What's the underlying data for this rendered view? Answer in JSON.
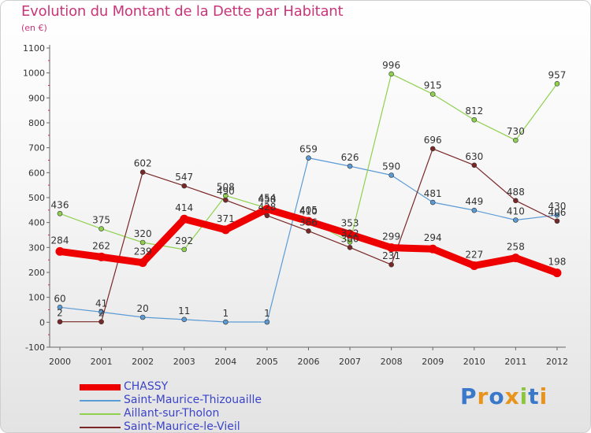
{
  "chart_data": {
    "type": "line",
    "title": "Evolution du Montant de la Dette par Habitant",
    "unit_label": "(en €)",
    "x": [
      "2000",
      "2001",
      "2002",
      "2003",
      "2004",
      "2005",
      "2006",
      "2007",
      "2008",
      "2009",
      "2010",
      "2011",
      "2012"
    ],
    "yticks": [
      -100,
      0,
      100,
      200,
      300,
      400,
      500,
      600,
      700,
      800,
      900,
      1000,
      1100
    ],
    "ylim": [
      -100,
      1100
    ],
    "grid": false,
    "legend_position": "bottom-left",
    "series": [
      {
        "name": "CHASSY",
        "color": "#ee0000",
        "emphasis": true,
        "values": [
          284,
          262,
          239,
          414,
          371,
          454,
          405,
          353,
          299,
          294,
          227,
          258,
          198
        ]
      },
      {
        "name": "Saint-Maurice-Thizouaille",
        "color": "#5b9bd5",
        "values": [
          60,
          41,
          20,
          11,
          1,
          1,
          659,
          626,
          590,
          481,
          449,
          410,
          430
        ]
      },
      {
        "name": "Aillant-sur-Tholon",
        "color": "#8fd14f",
        "values": [
          436,
          375,
          320,
          292,
          508,
          458,
          410,
          322,
          996,
          915,
          812,
          730,
          957
        ]
      },
      {
        "name": "Saint-Maurice-le-Vieil",
        "color": "#7a2727",
        "values": [
          2,
          2,
          602,
          547,
          490,
          428,
          366,
          300,
          231,
          696,
          630,
          488,
          406
        ]
      }
    ]
  },
  "brand": {
    "letters": [
      "P",
      "r",
      "o",
      "x",
      "i",
      "t",
      "i"
    ],
    "colors": [
      "#3a78c9",
      "#e8941c",
      "#3a78c9",
      "#e8941c",
      "#8cc63f",
      "#3a78c9",
      "#e8941c"
    ]
  }
}
